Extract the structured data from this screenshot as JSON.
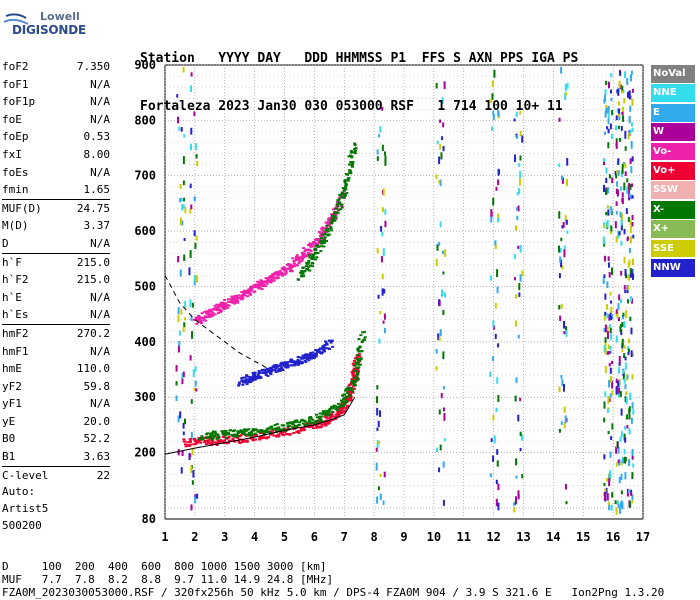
{
  "logo": {
    "line1": "Lowell",
    "line2": "DIGISONDE"
  },
  "header": {
    "row1": "Station   YYYY DAY   DDD HHMMSS P1  FFS S AXN PPS IGA PS",
    "row2": "Fortaleza 2023 Jan30 030 053000 RSF   1 714 100 10+ 11"
  },
  "params": [
    {
      "label": "foF2",
      "value": "7.350"
    },
    {
      "label": "foF1",
      "value": "N/A"
    },
    {
      "label": "foF1p",
      "value": "N/A"
    },
    {
      "label": "foE",
      "value": "N/A"
    },
    {
      "label": "foEp",
      "value": "0.53"
    },
    {
      "label": "fxI",
      "value": "8.00"
    },
    {
      "label": "foEs",
      "value": "N/A"
    },
    {
      "label": "fmin",
      "value": "1.65"
    },
    {
      "label": "MUF(D)",
      "value": "24.75"
    },
    {
      "label": "M(D)",
      "value": "3.37"
    },
    {
      "label": "D",
      "value": "N/A"
    },
    {
      "label": "h`F",
      "value": "215.0"
    },
    {
      "label": "h`F2",
      "value": "215.0"
    },
    {
      "label": "h`E",
      "value": "N/A"
    },
    {
      "label": "h`Es",
      "value": "N/A"
    },
    {
      "label": "hmF2",
      "value": "270.2"
    },
    {
      "label": "hmF1",
      "value": "N/A"
    },
    {
      "label": "hmE",
      "value": "110.0"
    },
    {
      "label": "yF2",
      "value": "59.8"
    },
    {
      "label": "yF1",
      "value": "N/A"
    },
    {
      "label": "yE",
      "value": "20.0"
    },
    {
      "label": "B0",
      "value": "52.2"
    },
    {
      "label": "B1",
      "value": "3.63"
    },
    {
      "label": "C-level",
      "value": "22"
    }
  ],
  "auto": {
    "line1": "Auto:",
    "line2": "Artist5",
    "line3": "500200"
  },
  "footer": {
    "row1": "D     100  200  400  600  800 1000 1500 3000 [km]",
    "row2": "MUF   7.7  7.8  8.2  8.8  9.7 11.0 14.9 24.8 [MHz]",
    "row3": "FZA0M_2023030053000.RSF / 320fx256h 50 kHz 5.0 km / DPS-4 FZA0M 904 / 3.9 S 321.6 E   Ion2Png 1.3.20"
  },
  "legend": [
    {
      "label": "NoVal",
      "color": "#808080"
    },
    {
      "label": "NNE",
      "color": "#33ddee"
    },
    {
      "label": "E",
      "color": "#33aaee"
    },
    {
      "label": "W",
      "color": "#aa0099"
    },
    {
      "label": "Vo-",
      "color": "#ee22aa"
    },
    {
      "label": "Vo+",
      "color": "#ee0033"
    },
    {
      "label": "SSW",
      "color": "#f0b0b0"
    },
    {
      "label": "X-",
      "color": "#007700"
    },
    {
      "label": "X+",
      "color": "#88bb55"
    },
    {
      "label": "SSE",
      "color": "#cccc00"
    },
    {
      "label": "NNW",
      "color": "#2222cc"
    }
  ],
  "chart_data": {
    "type": "scatter",
    "title": "",
    "xlabel": "",
    "ylabel": "",
    "xlim": [
      1,
      17
    ],
    "ylim": [
      80,
      900
    ],
    "x_ticks": [
      1,
      2,
      3,
      4,
      5,
      6,
      7,
      8,
      9,
      10,
      11,
      12,
      13,
      14,
      15,
      16,
      17
    ],
    "y_ticks": [
      80,
      200,
      300,
      400,
      500,
      600,
      700,
      800,
      900
    ],
    "grid": true,
    "curves": [
      {
        "name": "profile-solid",
        "style": "solid",
        "x": [
          1.0,
          2.0,
          3.0,
          4.0,
          5.0,
          6.0,
          6.5,
          7.0,
          7.35
        ],
        "y": [
          197,
          208,
          218,
          228,
          240,
          250,
          258,
          268,
          300
        ]
      },
      {
        "name": "profile-dashed",
        "style": "dashed",
        "x": [
          1.0,
          1.5,
          2.0,
          2.5,
          3.0,
          3.5,
          4.0,
          4.5
        ],
        "y": [
          520,
          470,
          440,
          420,
          400,
          380,
          365,
          350
        ]
      }
    ],
    "traces": [
      {
        "series": "Vo+",
        "x": [
          1.6,
          2.5,
          3.5,
          4.5,
          5.5,
          6.3,
          6.8,
          7.1,
          7.3,
          7.4
        ],
        "y": [
          220,
          222,
          226,
          235,
          245,
          258,
          275,
          300,
          340,
          380
        ]
      },
      {
        "series": "X-",
        "x": [
          2.2,
          3.0,
          4.0,
          5.0,
          6.0,
          6.8,
          7.3,
          7.6
        ],
        "y": [
          230,
          235,
          240,
          248,
          262,
          285,
          330,
          420
        ]
      },
      {
        "series": "Vo-",
        "x": [
          2.0,
          2.5,
          3.0,
          3.5,
          4.0,
          4.5,
          5.0,
          5.5,
          6.0,
          6.5,
          7.0
        ],
        "y": [
          440,
          455,
          470,
          485,
          500,
          515,
          530,
          555,
          580,
          620,
          680
        ]
      },
      {
        "series": "X-",
        "x": [
          5.5,
          6.0,
          6.5,
          7.0,
          7.3
        ],
        "y": [
          520,
          560,
          610,
          680,
          760
        ]
      },
      {
        "series": "NNW",
        "x": [
          3.5,
          4.0,
          4.5,
          5.0,
          5.5,
          6.0,
          6.5
        ],
        "y": [
          330,
          340,
          350,
          360,
          370,
          380,
          400
        ]
      }
    ]
  }
}
